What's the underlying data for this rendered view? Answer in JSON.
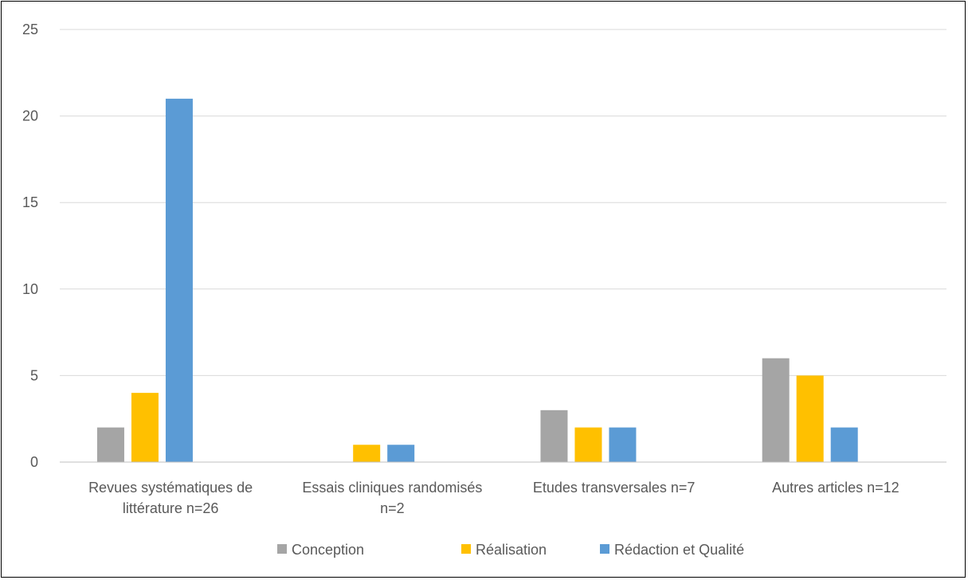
{
  "chart_data": {
    "type": "bar",
    "categories": [
      [
        "Revues systématiques de",
        "littérature n=26"
      ],
      [
        "Essais cliniques randomisés",
        "n=2"
      ],
      [
        "Etudes transversales n=7"
      ],
      [
        "Autres articles n=12"
      ]
    ],
    "series": [
      {
        "name": "Conception",
        "color": "#A5A5A5",
        "values": [
          2,
          0,
          3,
          6
        ]
      },
      {
        "name": "Réalisation",
        "color": "#FFC000",
        "values": [
          4,
          1,
          2,
          5
        ]
      },
      {
        "name": "Rédaction et Qualité",
        "color": "#5B9BD5",
        "values": [
          21,
          1,
          2,
          2
        ]
      }
    ],
    "ylim": [
      0,
      25
    ],
    "yticks": [
      0,
      5,
      10,
      15,
      20,
      25
    ],
    "grid": true,
    "legend_position": "bottom",
    "title": "",
    "xlabel": "",
    "ylabel": ""
  }
}
